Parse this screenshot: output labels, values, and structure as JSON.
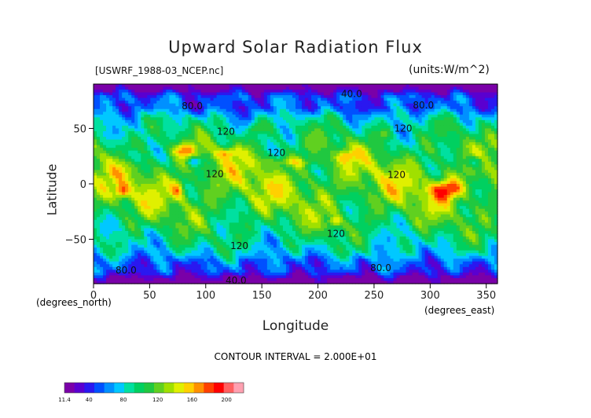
{
  "chart_data": {
    "type": "heatmap",
    "title": "Upward Solar Radiation Flux",
    "file_label": "[USWRF_1988-03_NCEP.nc]",
    "units_label": "(units:W/m^2)",
    "xlabel": "Longitude",
    "ylabel": "Latitude",
    "x_unit_label": "(degrees_east)",
    "y_unit_label": "(degrees_north)",
    "contour_interval_label": "CONTOUR INTERVAL = 2.000E+01",
    "xlim": [
      0,
      360
    ],
    "ylim": [
      -90,
      90
    ],
    "x_ticks": [
      0,
      50,
      100,
      150,
      200,
      250,
      300,
      350
    ],
    "y_ticks": [
      -50,
      0,
      50
    ],
    "contour_labels": [
      {
        "text": "40.0",
        "lon": 230,
        "lat": 81
      },
      {
        "text": "80.0",
        "lon": 88,
        "lat": 70
      },
      {
        "text": "80.0",
        "lon": 294,
        "lat": 71
      },
      {
        "text": "120",
        "lon": 118,
        "lat": 47
      },
      {
        "text": "120",
        "lon": 276,
        "lat": 50
      },
      {
        "text": "120",
        "lon": 163,
        "lat": 28
      },
      {
        "text": "120",
        "lon": 108,
        "lat": 9
      },
      {
        "text": "120",
        "lon": 270,
        "lat": 8
      },
      {
        "text": "120",
        "lon": 216,
        "lat": -45
      },
      {
        "text": "120",
        "lon": 130,
        "lat": -56
      },
      {
        "text": "80.0",
        "lon": 29,
        "lat": -78
      },
      {
        "text": "80.0",
        "lon": 256,
        "lat": -76
      },
      {
        "text": "40.0",
        "lon": 127,
        "lat": -87
      }
    ],
    "colorbar": {
      "tick_labels": [
        "11.4",
        "40",
        "80",
        "120",
        "160",
        "200"
      ],
      "tick_values": [
        11.4,
        40,
        80,
        120,
        160,
        200
      ],
      "min": 11.4,
      "max": 220,
      "colors": [
        "#7a00a8",
        "#5a00d0",
        "#2a18f0",
        "#0050ff",
        "#0090ff",
        "#00c8ff",
        "#00e0a0",
        "#00d060",
        "#20c840",
        "#60d020",
        "#a0e000",
        "#e0f000",
        "#ffd000",
        "#ff9000",
        "#ff4000",
        "#ff0000",
        "#ff6060",
        "#ffa0b0"
      ]
    }
  }
}
